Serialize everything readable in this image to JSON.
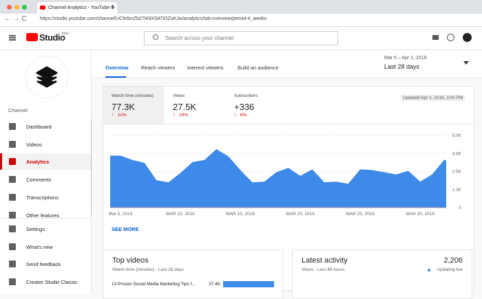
{
  "browser": {
    "tab_title": "Channel Analytics - YouTube S",
    "url": "https://studio.youtube.com/channel/UCfe6mZb27l49XSATiOZoKJw/analytics/tab-overview/period-4_weeks"
  },
  "header": {
    "logo": "Studio",
    "beta": "beta",
    "search_placeholder": "Search across your channel"
  },
  "sidebar": {
    "channel_label": "Channel",
    "items": [
      "Dashboard",
      "Videos",
      "Analytics",
      "Comments",
      "Transcriptions",
      "Other features"
    ],
    "footer_items": [
      "Settings",
      "What's new",
      "Send feedback",
      "Creator Studio Classic"
    ],
    "active": "Analytics"
  },
  "tabs": [
    "Overview",
    "Reach viewers",
    "Interest viewers",
    "Build an audience"
  ],
  "date_range": {
    "range": "Mar 5 – Apr 1, 2019",
    "period": "Last 28 days"
  },
  "metrics": [
    {
      "label": "Watch time (minutes)",
      "value": "77.3K",
      "change": "11%"
    },
    {
      "label": "Views",
      "value": "27.5K",
      "change": "10%"
    },
    {
      "label": "Subscribers",
      "value": "+336",
      "change": "6%"
    }
  ],
  "updated": "Updated Apr 1, 2019, 3:00 PM",
  "chart_data": {
    "type": "area",
    "color": "#3d8ae8",
    "categories": [
      "Mar 5, 2019",
      null,
      null,
      null,
      null,
      "MAR 10, 2019",
      null,
      null,
      null,
      null,
      "MAR 15, 2019",
      null,
      null,
      null,
      null,
      "MAR 20, 2019",
      null,
      null,
      null,
      null,
      "MAR 25, 2019",
      null,
      null,
      null,
      null,
      "MAR 30, 2019",
      null,
      null
    ],
    "values": [
      3600,
      3300,
      3100,
      1900,
      1750,
      2400,
      3150,
      3300,
      4050,
      3550,
      2600,
      1750,
      1800,
      2450,
      2750,
      2200,
      2650,
      1750,
      1800,
      1650,
      2650,
      2600,
      2450,
      2300,
      2550,
      1800,
      2300,
      3300
    ],
    "ylim": [
      0,
      5000
    ],
    "yticks": [
      0,
      {
        "value": 1250,
        "label": "1.3K"
      },
      {
        "value": 2500,
        "label": "2.5K"
      },
      {
        "value": 3750,
        "label": "3.8K"
      },
      {
        "value": 5000,
        "label": "5.0K"
      }
    ],
    "grid": true
  },
  "see_more": "SEE MORE",
  "top_videos": {
    "title": "Top videos",
    "subtitle": "Watch time (minutes) · Last 28 days",
    "items": [
      {
        "title": "13 Proven Social Media Marketing Tips f...",
        "value": 37400,
        "value_label": "37.4K"
      }
    ]
  },
  "latest_activity": {
    "title": "Latest activity",
    "value": "2,206",
    "subtitle": "Views · Last 48 hours",
    "status": "Updating live"
  }
}
